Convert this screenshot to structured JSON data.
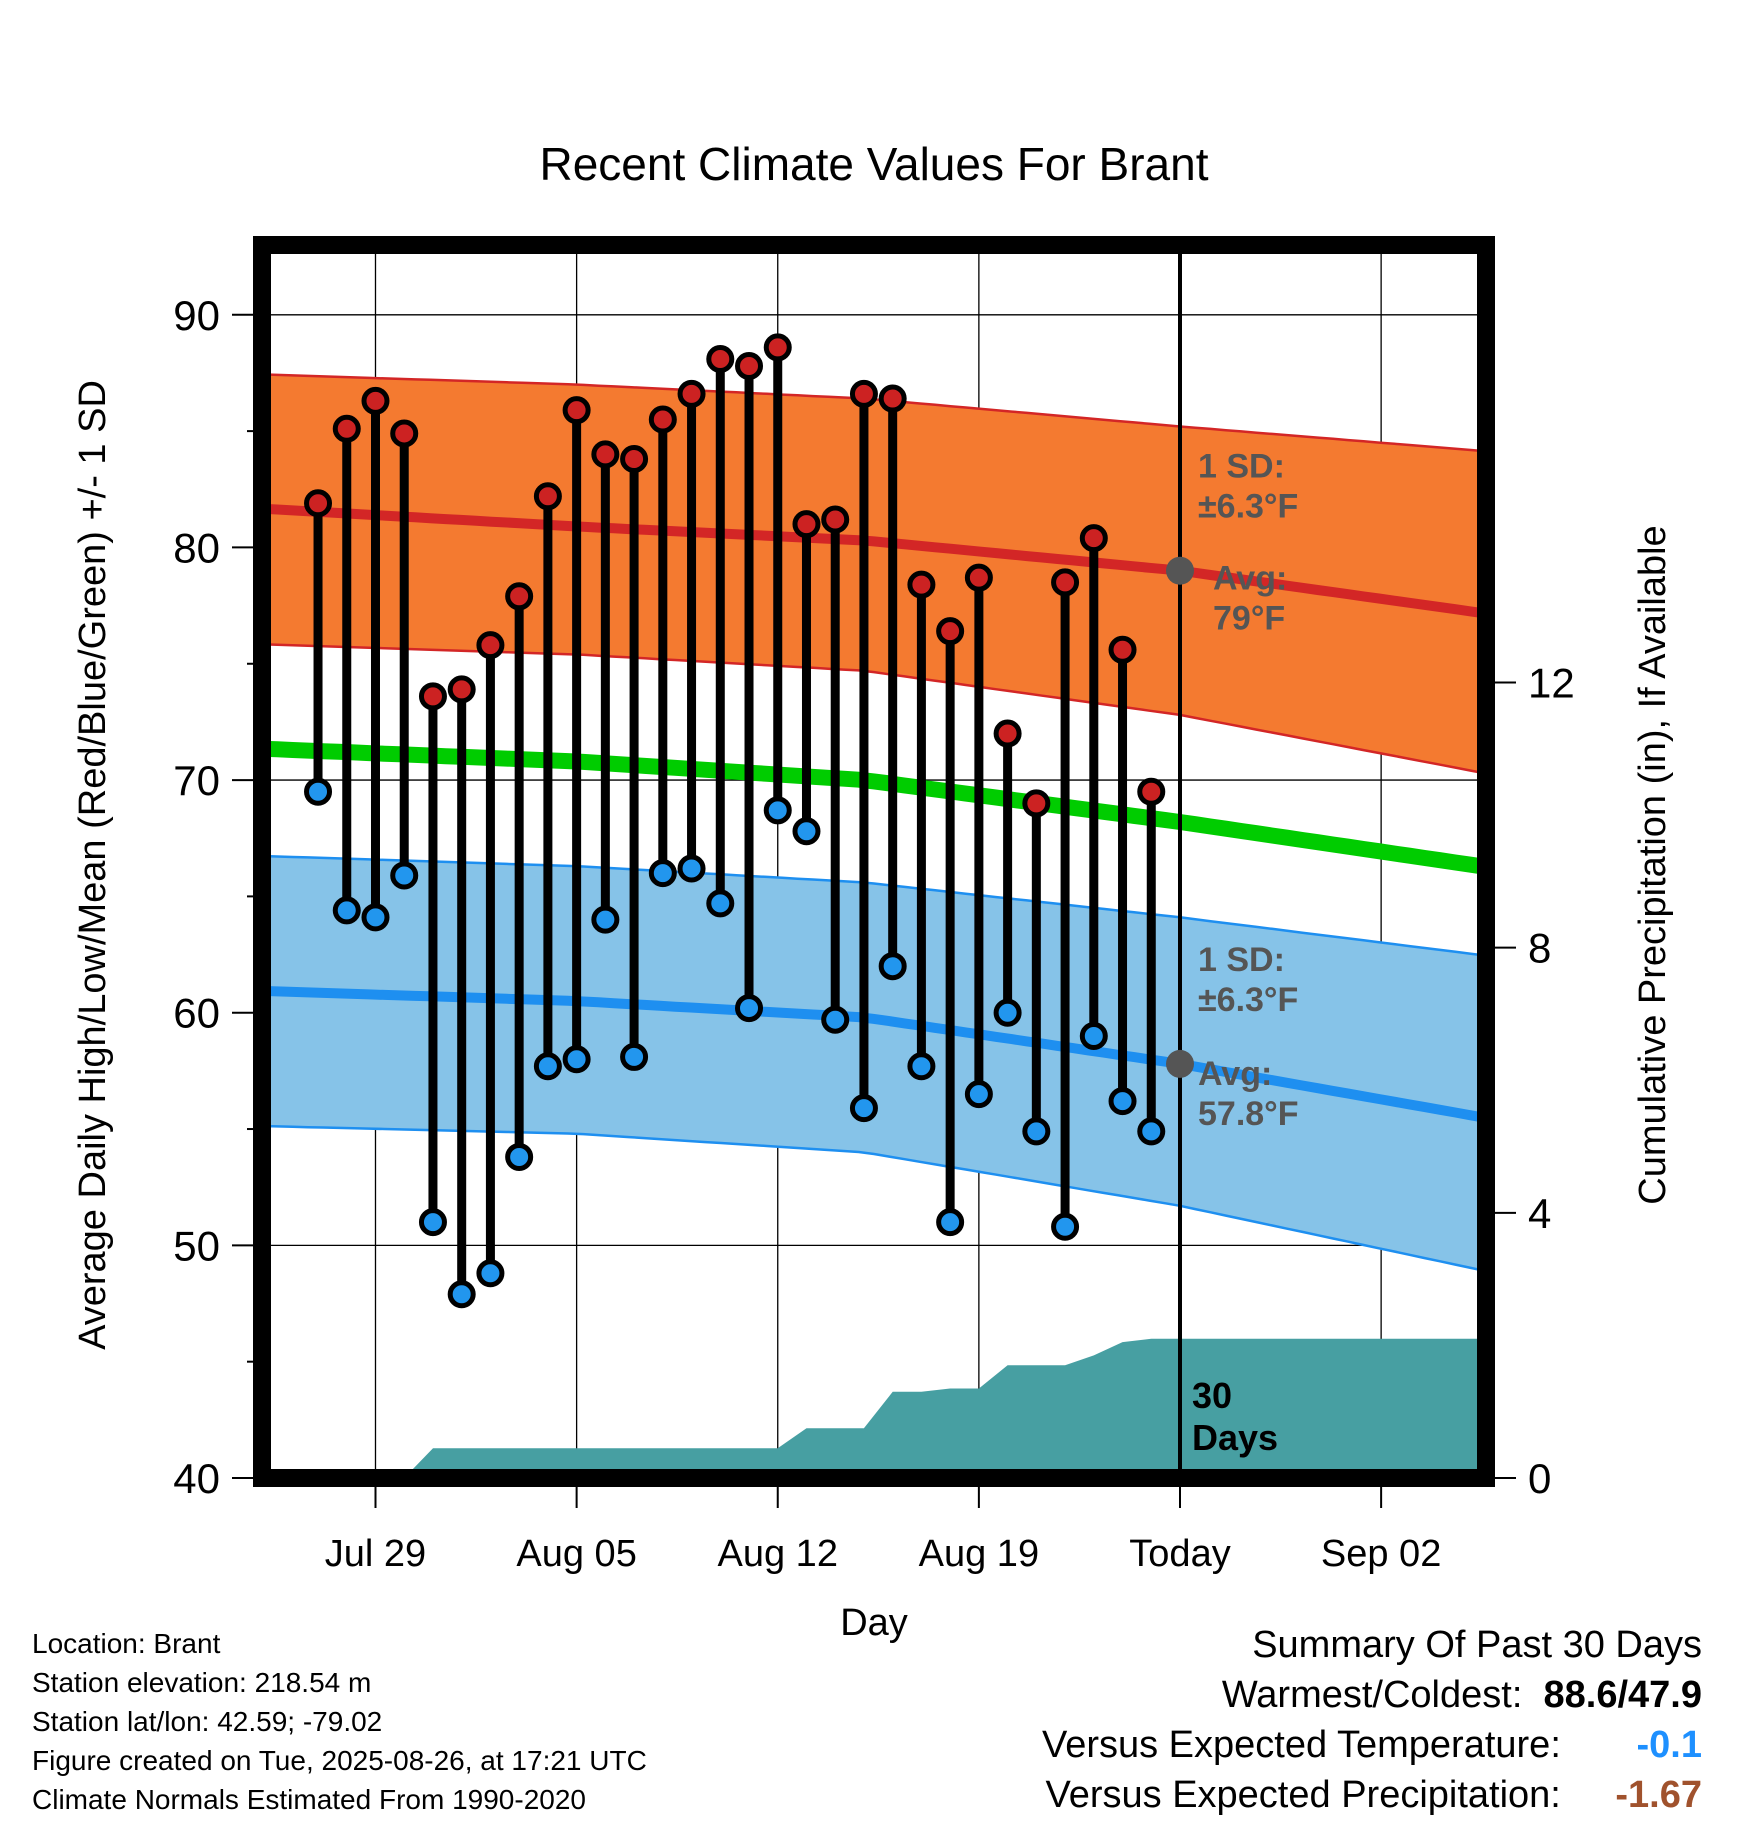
{
  "chart_data": {
    "type": "line",
    "title": "Recent Climate Values For Brant",
    "xlabel": "Day",
    "ylabel": "Average Daily High/Low/Mean (Red/Blue/Green) +/- 1 SD",
    "y2label": "Cumulative Precipitation (in), If Available",
    "ylim": [
      40,
      93
    ],
    "y2lim": [
      0,
      18.6
    ],
    "y_ticks": [
      "40",
      "50",
      "60",
      "70",
      "80",
      "90"
    ],
    "y2_ticks": [
      "0",
      "4",
      "8",
      "12"
    ],
    "x_ticks": [
      "Jul 29",
      "Aug 05",
      "Aug 12",
      "Aug 19",
      "Today",
      "Sep 02"
    ],
    "x_tick_days": [
      3,
      10,
      17,
      24,
      31,
      38
    ],
    "xlim": [
      -0.95,
      41.65
    ],
    "grid": true,
    "today_day": 31,
    "today_label": "30 Days",
    "days": [
      1,
      2,
      3,
      4,
      5,
      6,
      7,
      8,
      9,
      10,
      11,
      12,
      13,
      14,
      15,
      16,
      17,
      18,
      19,
      20,
      21,
      22,
      23,
      24,
      25,
      26,
      27,
      28,
      29,
      30
    ],
    "highs": [
      81.9,
      85.1,
      86.3,
      84.9,
      73.6,
      73.9,
      75.8,
      77.9,
      82.2,
      85.9,
      84.0,
      83.8,
      85.5,
      86.6,
      88.1,
      87.8,
      88.6,
      81.0,
      81.2,
      86.6,
      86.4,
      78.4,
      76.4,
      78.7,
      72.0,
      69.0,
      78.5,
      80.4,
      75.6,
      69.5
    ],
    "lows": [
      69.5,
      64.4,
      64.1,
      65.9,
      51.0,
      47.9,
      48.8,
      53.8,
      57.7,
      58.0,
      64.0,
      58.1,
      66.0,
      66.2,
      64.7,
      60.2,
      68.7,
      67.8,
      59.7,
      55.9,
      62.0,
      57.7,
      51.0,
      56.5,
      60.0,
      54.9,
      50.8,
      59.0,
      56.2,
      54.9
    ],
    "normal_high": {
      "days": [
        0,
        10,
        20,
        31,
        42
      ],
      "values": [
        81.6,
        80.9,
        80.3,
        79.0,
        77.1
      ]
    },
    "normal_low": {
      "days": [
        0,
        10,
        20,
        31,
        42
      ],
      "values": [
        60.9,
        60.5,
        59.8,
        57.8,
        55.4
      ]
    },
    "normal_mean": {
      "days": [
        0,
        10,
        20,
        31,
        42
      ],
      "values": [
        71.3,
        70.8,
        70.0,
        68.2,
        66.2
      ]
    },
    "high_sd_band": {
      "days": [
        0,
        10,
        20,
        31,
        42
      ],
      "lower": [
        75.8,
        75.4,
        74.7,
        72.8,
        70.2
      ],
      "upper": [
        87.4,
        87.0,
        86.4,
        85.2,
        84.1
      ]
    },
    "low_sd_band": {
      "days": [
        0,
        10,
        20,
        31,
        42
      ],
      "lower": [
        55.1,
        54.8,
        54.0,
        51.7,
        48.8
      ],
      "upper": [
        66.7,
        66.3,
        65.6,
        64.1,
        62.4
      ]
    },
    "precip_cumulative": {
      "days": [
        0,
        4,
        5,
        17,
        18,
        20,
        21,
        22,
        23,
        24,
        25,
        27,
        28,
        29,
        30,
        31,
        42
      ],
      "values": [
        0,
        0,
        0.45,
        0.45,
        0.75,
        0.75,
        1.3,
        1.3,
        1.35,
        1.35,
        1.7,
        1.7,
        1.85,
        2.05,
        2.1,
        2.1,
        2.1
      ]
    },
    "annotations": [
      {
        "id": "high_sd",
        "line1": "1 SD:",
        "line2": "±6.3°F",
        "y_value": 83.0
      },
      {
        "id": "high_avg",
        "line1": "Avg:",
        "line2": "79°F",
        "y_value": 78.2
      },
      {
        "id": "low_sd",
        "line1": "1 SD:",
        "line2": "±6.3°F",
        "y_value": 61.8
      },
      {
        "id": "low_avg",
        "line1": "Avg:",
        "line2": "57.8°F",
        "y_value": 56.9
      }
    ],
    "colors": {
      "high_band": "#f47a30",
      "high_line": "#d32626",
      "low_band": "#86c3e8",
      "low_line": "#1e8ff0",
      "mean_line": "#00cc00",
      "precip": "#479fa2",
      "high_marker": "#cc2222",
      "low_marker": "#2296ee",
      "avg_dot": "#555555",
      "annotation_text": "#555555",
      "dep_temp": "#1e90ff",
      "dep_precip": "#a0522d"
    }
  },
  "footer": {
    "location": "Location: Brant",
    "elevation": "Station elevation: 218.54 m",
    "latlon": "Station lat/lon: 42.59; -79.02",
    "created": "Figure created on Tue, 2025-08-26, at 17:21 UTC",
    "normals": "Climate Normals Estimated From 1990-2020"
  },
  "summary": {
    "heading": "Summary Of Past 30 Days",
    "warmest_coldest_label": "Warmest/Coldest:",
    "warmest_coldest_value": "88.6/47.9",
    "temp_label": "Versus Expected Temperature:",
    "temp_value": "-0.1",
    "precip_label": "Versus Expected Precipitation:",
    "precip_value": "-1.67"
  }
}
